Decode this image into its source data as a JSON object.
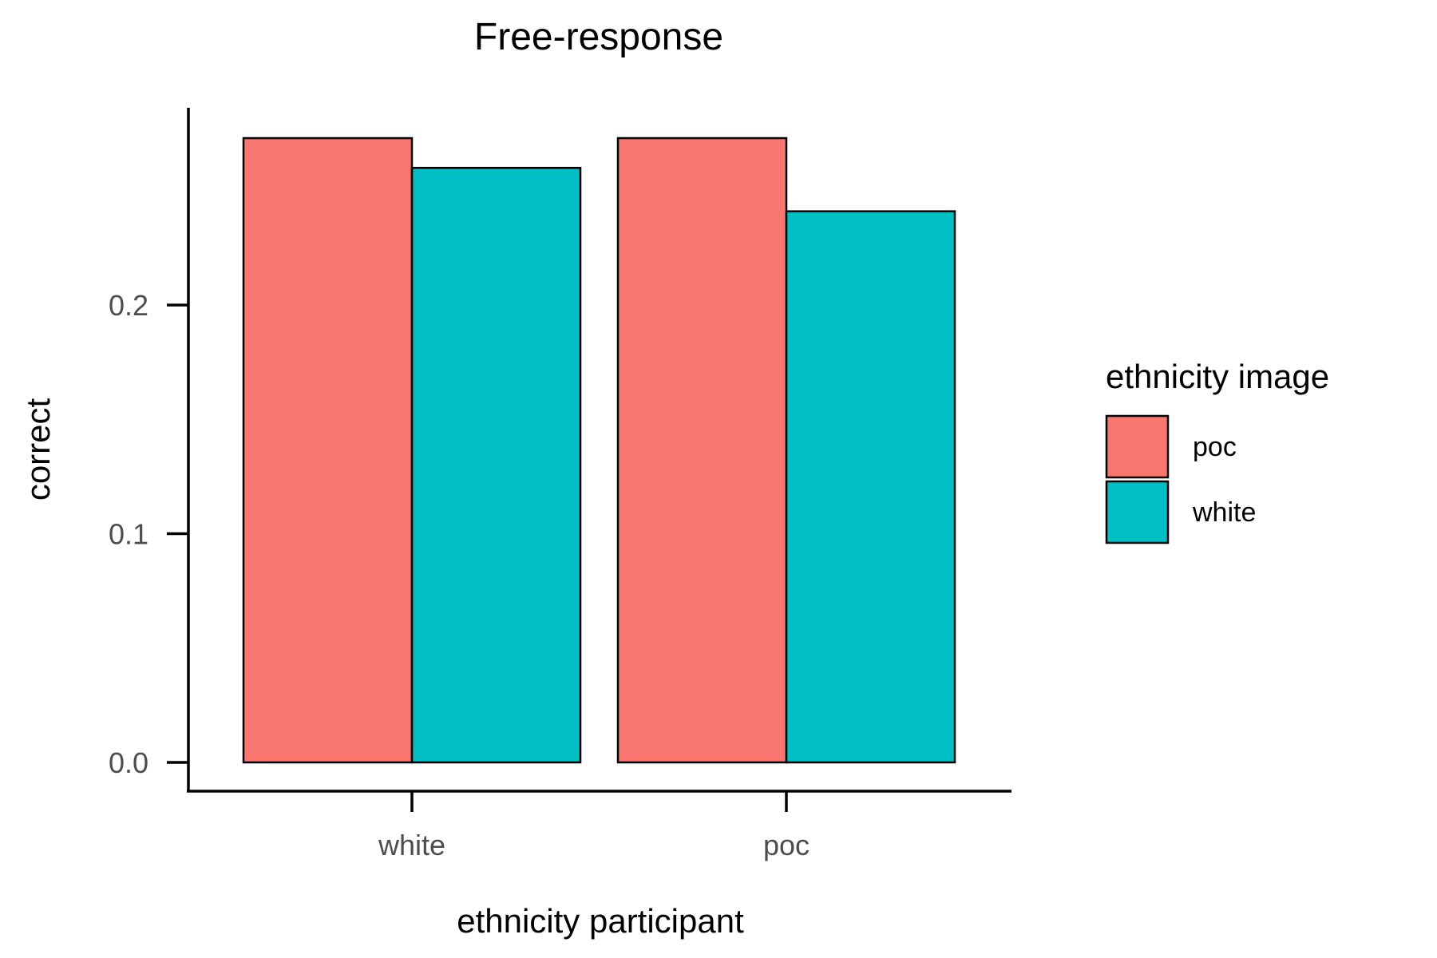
{
  "colors": {
    "poc": "#F8766D",
    "white": "#00BFC4",
    "outline": "#000000",
    "axis": "#000000",
    "tick_text": "#4d4d4d"
  },
  "chart_data": {
    "type": "bar",
    "title": "Free-response",
    "xlabel": "ethnicity participant",
    "ylabel": "correct",
    "categories": [
      "white",
      "poc"
    ],
    "series": [
      {
        "name": "poc",
        "values": [
          0.273,
          0.273
        ]
      },
      {
        "name": "white",
        "values": [
          0.26,
          0.241
        ]
      }
    ],
    "ylim": [
      0,
      0.273
    ],
    "yticks": [
      0.0,
      0.1,
      0.2
    ],
    "ytick_labels": [
      "0.0",
      "0.1",
      "0.2"
    ],
    "grid": false,
    "legend": {
      "title": "ethnicity image",
      "position": "right",
      "entries": [
        "poc",
        "white"
      ]
    }
  }
}
